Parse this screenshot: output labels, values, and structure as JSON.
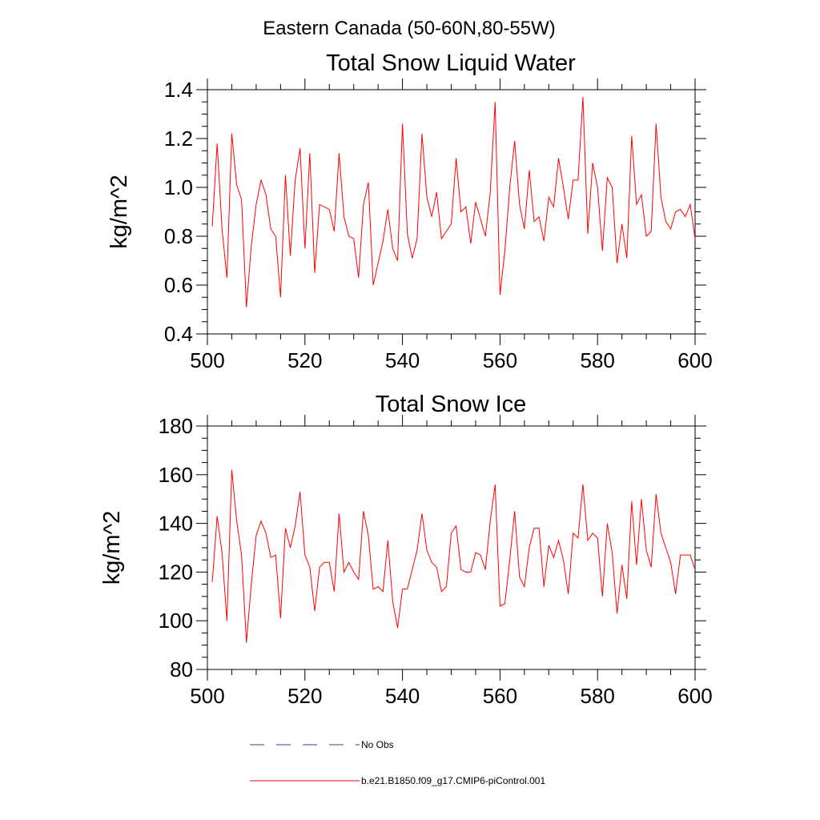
{
  "suptitle": "Eastern Canada (50-60N,80-55W)",
  "colors": {
    "series": "#ff0000",
    "obs": "#3b3b9e",
    "axis": "#000000"
  },
  "legend": {
    "entries": [
      {
        "label": "No Obs",
        "style": "dashed",
        "color": "#3b3b9e"
      },
      {
        "label": "b.e21.B1850.f09_g17.CMIP6-piControl.001",
        "style": "solid",
        "color": "#ff0000"
      }
    ]
  },
  "chart_data": [
    {
      "type": "line",
      "title": "Total Snow Liquid Water",
      "xlabel": "",
      "ylabel": "kg/m^2",
      "xlim": [
        500,
        600
      ],
      "ylim": [
        0.4,
        1.4
      ],
      "xticks": [
        500,
        520,
        540,
        560,
        580,
        600
      ],
      "yticks": [
        0.4,
        0.6,
        0.8,
        1.0,
        1.2,
        1.4
      ],
      "ytick_labels": [
        "0.4",
        "0.6",
        "0.8",
        "1.0",
        "1.2",
        "1.4"
      ],
      "x_start": 501,
      "series": [
        {
          "name": "b.e21.B1850.f09_g17.CMIP6-piControl.001",
          "values": [
            0.84,
            1.18,
            0.83,
            0.63,
            1.22,
            1.01,
            0.95,
            0.51,
            0.76,
            0.93,
            1.03,
            0.97,
            0.83,
            0.8,
            0.55,
            1.05,
            0.72,
            1.03,
            1.16,
            0.75,
            1.14,
            0.65,
            0.93,
            0.92,
            0.91,
            0.82,
            1.14,
            0.88,
            0.8,
            0.79,
            0.63,
            0.93,
            1.02,
            0.6,
            0.69,
            0.78,
            0.91,
            0.75,
            0.7,
            1.26,
            0.81,
            0.71,
            0.79,
            1.22,
            0.96,
            0.88,
            0.98,
            0.79,
            0.82,
            0.85,
            1.12,
            0.9,
            0.92,
            0.77,
            0.94,
            0.87,
            0.8,
            0.98,
            1.35,
            0.56,
            0.74,
            1.0,
            1.19,
            0.93,
            0.83,
            1.07,
            0.86,
            0.88,
            0.78,
            0.96,
            0.92,
            1.12,
            1.0,
            0.87,
            1.03,
            1.03,
            1.37,
            0.81,
            1.1,
            1.0,
            0.74,
            1.04,
            1.0,
            0.69,
            0.85,
            0.71,
            1.21,
            0.93,
            0.97,
            0.8,
            0.82,
            1.26,
            0.96,
            0.86,
            0.83,
            0.9,
            0.91,
            0.88,
            0.93,
            0.79
          ]
        }
      ]
    },
    {
      "type": "line",
      "title": "Total Snow Ice",
      "xlabel": "",
      "ylabel": "kg/m^2",
      "xlim": [
        500,
        600
      ],
      "ylim": [
        80,
        180
      ],
      "xticks": [
        500,
        520,
        540,
        560,
        580,
        600
      ],
      "yticks": [
        80,
        100,
        120,
        140,
        160,
        180
      ],
      "ytick_labels": [
        "80",
        "100",
        "120",
        "140",
        "160",
        "180"
      ],
      "x_start": 501,
      "series": [
        {
          "name": "b.e21.B1850.f09_g17.CMIP6-piControl.001",
          "values": [
            116,
            143,
            128,
            100,
            162,
            141,
            127,
            91,
            115,
            135,
            141,
            136,
            126,
            127,
            101,
            138,
            130,
            139,
            153,
            127,
            122,
            104,
            122,
            124,
            124,
            112,
            144,
            120,
            124,
            120,
            117,
            145,
            135,
            113,
            114,
            112,
            133,
            108,
            97,
            113,
            113,
            121,
            129,
            144,
            129,
            124,
            122,
            112,
            114,
            136,
            139,
            121,
            120,
            120,
            128,
            127,
            121,
            141,
            156,
            106,
            107,
            125,
            145,
            118,
            114,
            130,
            138,
            138,
            114,
            131,
            126,
            133,
            125,
            111,
            136,
            134,
            156,
            133,
            136,
            134,
            110,
            140,
            128,
            103,
            123,
            109,
            149,
            123,
            150,
            129,
            122,
            152,
            136,
            130,
            124,
            111,
            127,
            127,
            127,
            121
          ]
        }
      ]
    }
  ]
}
